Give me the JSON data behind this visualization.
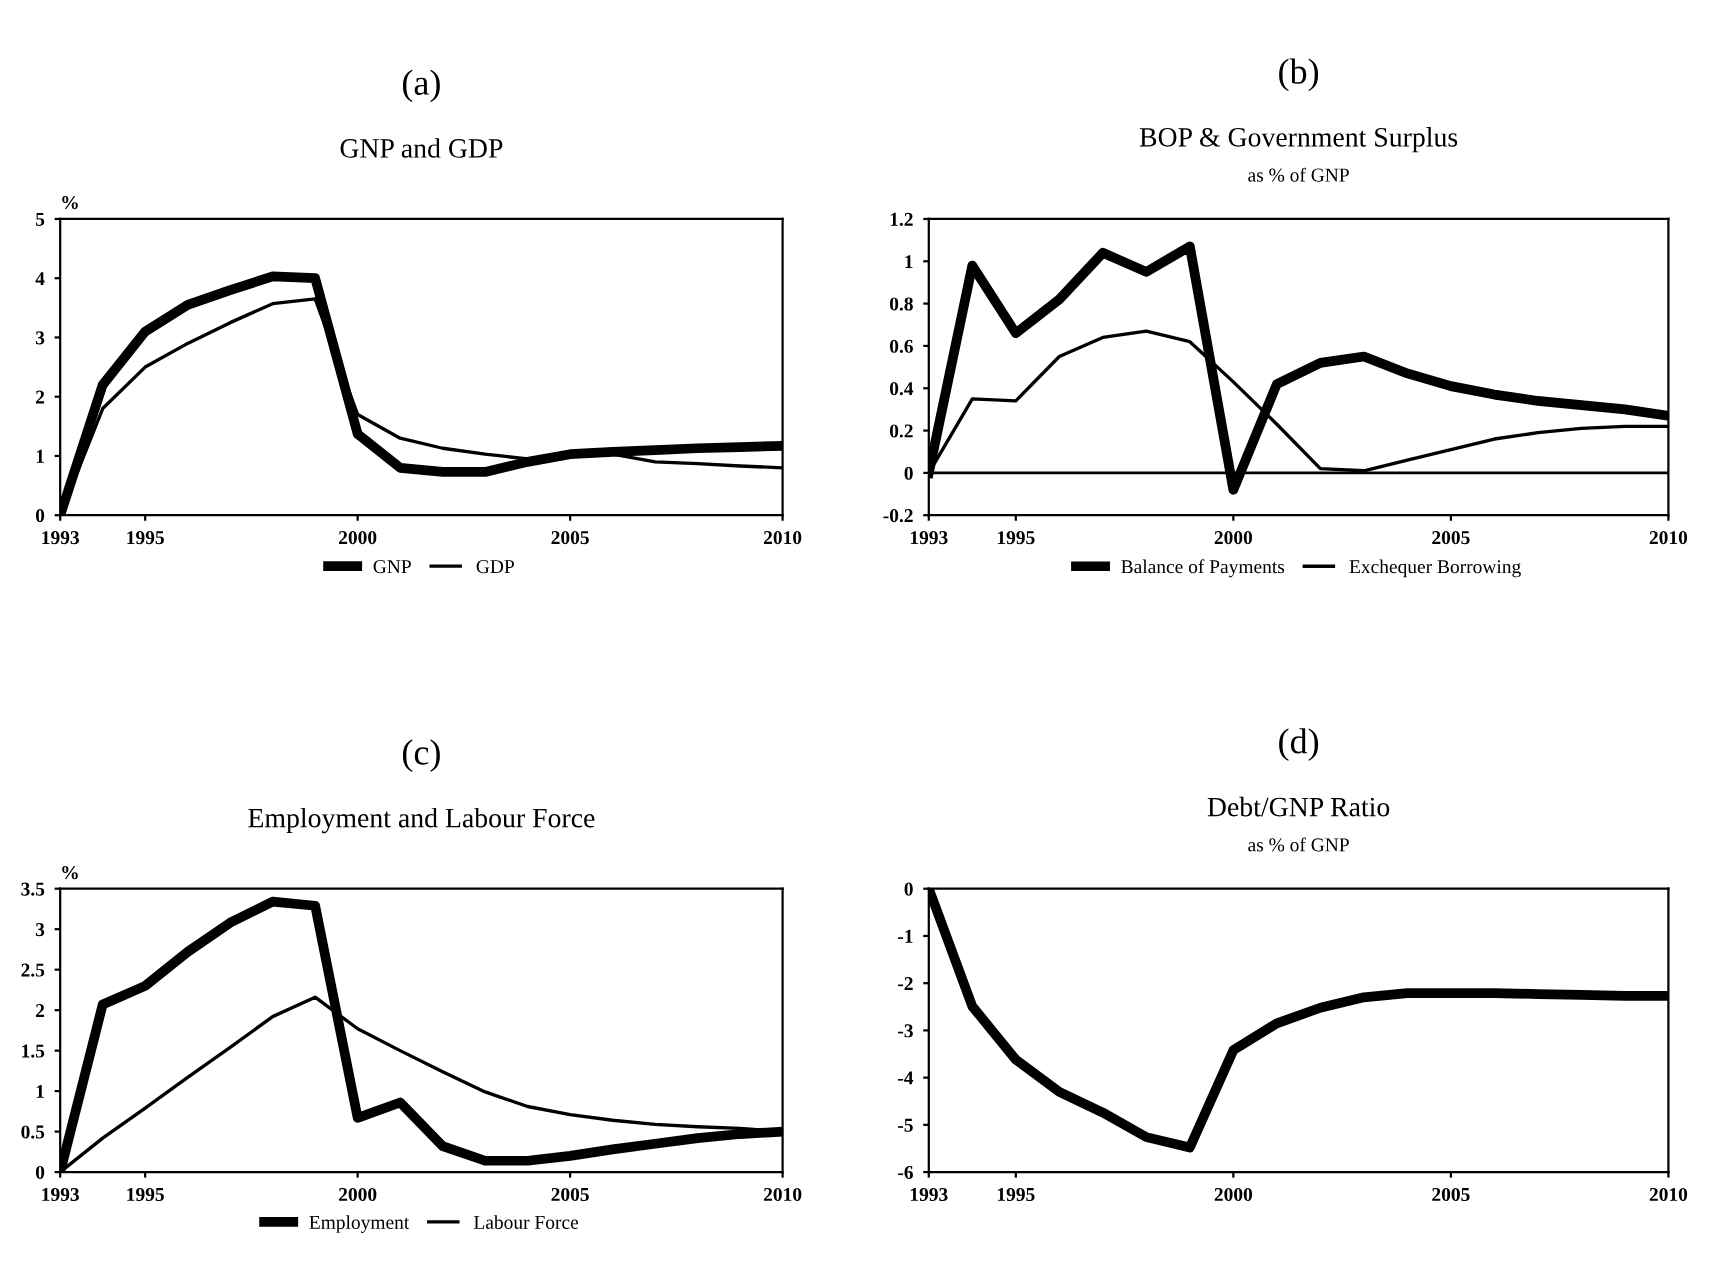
{
  "chart_data": [
    {
      "type": "line",
      "annotations": [
        "(a)"
      ],
      "title": "GNP and GDP",
      "ylabel": "%",
      "x": [
        1993,
        1994,
        1995,
        1996,
        1997,
        1998,
        1999,
        2000,
        2001,
        2002,
        2003,
        2004,
        2005,
        2006,
        2007,
        2008,
        2009,
        2010
      ],
      "series": [
        {
          "name": "GNP",
          "color": "#000000",
          "values": [
            0,
            2.2,
            3.1,
            3.55,
            3.8,
            4.03,
            4.0,
            1.37,
            0.8,
            0.73,
            0.73,
            0.9,
            1.03,
            1.07,
            1.1,
            1.13,
            1.15,
            1.17
          ]
        },
        {
          "name": "GDP",
          "color": "#000000",
          "values": [
            0,
            1.8,
            2.5,
            2.9,
            3.25,
            3.57,
            3.65,
            1.7,
            1.3,
            1.13,
            1.03,
            0.95,
            1.0,
            1.03,
            0.9,
            0.87,
            0.83,
            0.8
          ]
        }
      ],
      "xlim": [
        1993,
        2010
      ],
      "xticks": [
        1993,
        1995,
        2000,
        2005,
        2010
      ],
      "ylim": [
        0,
        5
      ],
      "yticks": [
        0,
        1,
        2,
        3,
        4,
        5
      ],
      "grid": false,
      "legend": "bottom"
    },
    {
      "type": "line",
      "annotations": [
        "(b)"
      ],
      "title": "BOP & Government Surplus",
      "subtitle": "as % of GNP",
      "x": [
        1993,
        1994,
        1995,
        1996,
        1997,
        1998,
        1999,
        2000,
        2001,
        2002,
        2003,
        2004,
        2005,
        2006,
        2007,
        2008,
        2009,
        2010
      ],
      "series": [
        {
          "name": "Balance of Payments",
          "color": "#000000",
          "values": [
            0,
            0.98,
            0.66,
            0.82,
            1.04,
            0.95,
            1.07,
            -0.08,
            0.42,
            0.52,
            0.55,
            0.47,
            0.41,
            0.37,
            0.34,
            0.32,
            0.3,
            0.27
          ]
        },
        {
          "name": "Exchequer Borrowing",
          "color": "#000000",
          "values": [
            0,
            0.35,
            0.34,
            0.55,
            0.64,
            0.67,
            0.62,
            0.43,
            0.23,
            0.02,
            0.01,
            0.06,
            0.11,
            0.16,
            0.19,
            0.21,
            0.22,
            0.22
          ]
        }
      ],
      "xlim": [
        1993,
        2010
      ],
      "xticks": [
        1993,
        1995,
        2000,
        2005,
        2010
      ],
      "ylim": [
        -0.2,
        1.2
      ],
      "yticks": [
        -0.2,
        0,
        0.2,
        0.4,
        0.6,
        0.8,
        1,
        1.2
      ],
      "grid": false,
      "legend": "bottom",
      "ref_lines": [
        {
          "axis": "y",
          "value": 0,
          "color": "#000000"
        }
      ]
    },
    {
      "type": "line",
      "annotations": [
        "(c)"
      ],
      "title": "Employment and Labour Force",
      "ylabel": "%",
      "x": [
        1993,
        1994,
        1995,
        1996,
        1997,
        1998,
        1999,
        2000,
        2001,
        2002,
        2003,
        2004,
        2005,
        2006,
        2007,
        2008,
        2009,
        2010
      ],
      "series": [
        {
          "name": "Employment",
          "color": "#000000",
          "values": [
            0,
            2.07,
            2.3,
            2.72,
            3.08,
            3.34,
            3.29,
            0.67,
            0.86,
            0.32,
            0.14,
            0.14,
            0.2,
            0.28,
            0.35,
            0.42,
            0.47,
            0.5
          ]
        },
        {
          "name": "Labour Force",
          "color": "#000000",
          "values": [
            0,
            0.42,
            0.79,
            1.17,
            1.54,
            1.92,
            2.16,
            1.77,
            1.5,
            1.24,
            0.99,
            0.81,
            0.71,
            0.64,
            0.59,
            0.56,
            0.54,
            0.5
          ]
        }
      ],
      "xlim": [
        1993,
        2010
      ],
      "xticks": [
        1993,
        1995,
        2000,
        2005,
        2010
      ],
      "ylim": [
        0,
        3.5
      ],
      "yticks": [
        0,
        0.5,
        1,
        1.5,
        2,
        2.5,
        3,
        3.5
      ],
      "grid": false,
      "legend": "bottom"
    },
    {
      "type": "line",
      "annotations": [
        "(d)"
      ],
      "title": "Debt/GNP Ratio",
      "subtitle": "as % of GNP",
      "x": [
        1993,
        1994,
        1995,
        1996,
        1997,
        1998,
        1999,
        2000,
        2001,
        2002,
        2003,
        2004,
        2005,
        2006,
        2007,
        2008,
        2009,
        2010
      ],
      "series": [
        {
          "color": "#000000",
          "values": [
            0,
            -2.49,
            -3.62,
            -4.3,
            -4.74,
            -5.26,
            -5.48,
            -3.42,
            -2.85,
            -2.52,
            -2.3,
            -2.21,
            -2.21,
            -2.21,
            -2.23,
            -2.25,
            -2.27,
            -2.27
          ]
        }
      ],
      "xlim": [
        1993,
        2010
      ],
      "xticks": [
        1993,
        1995,
        2000,
        2005,
        2010
      ],
      "ylim": [
        -6,
        0
      ],
      "yticks": [
        -6,
        -5,
        -4,
        -3,
        -2,
        -1,
        0
      ],
      "grid": false,
      "legend": false
    }
  ]
}
